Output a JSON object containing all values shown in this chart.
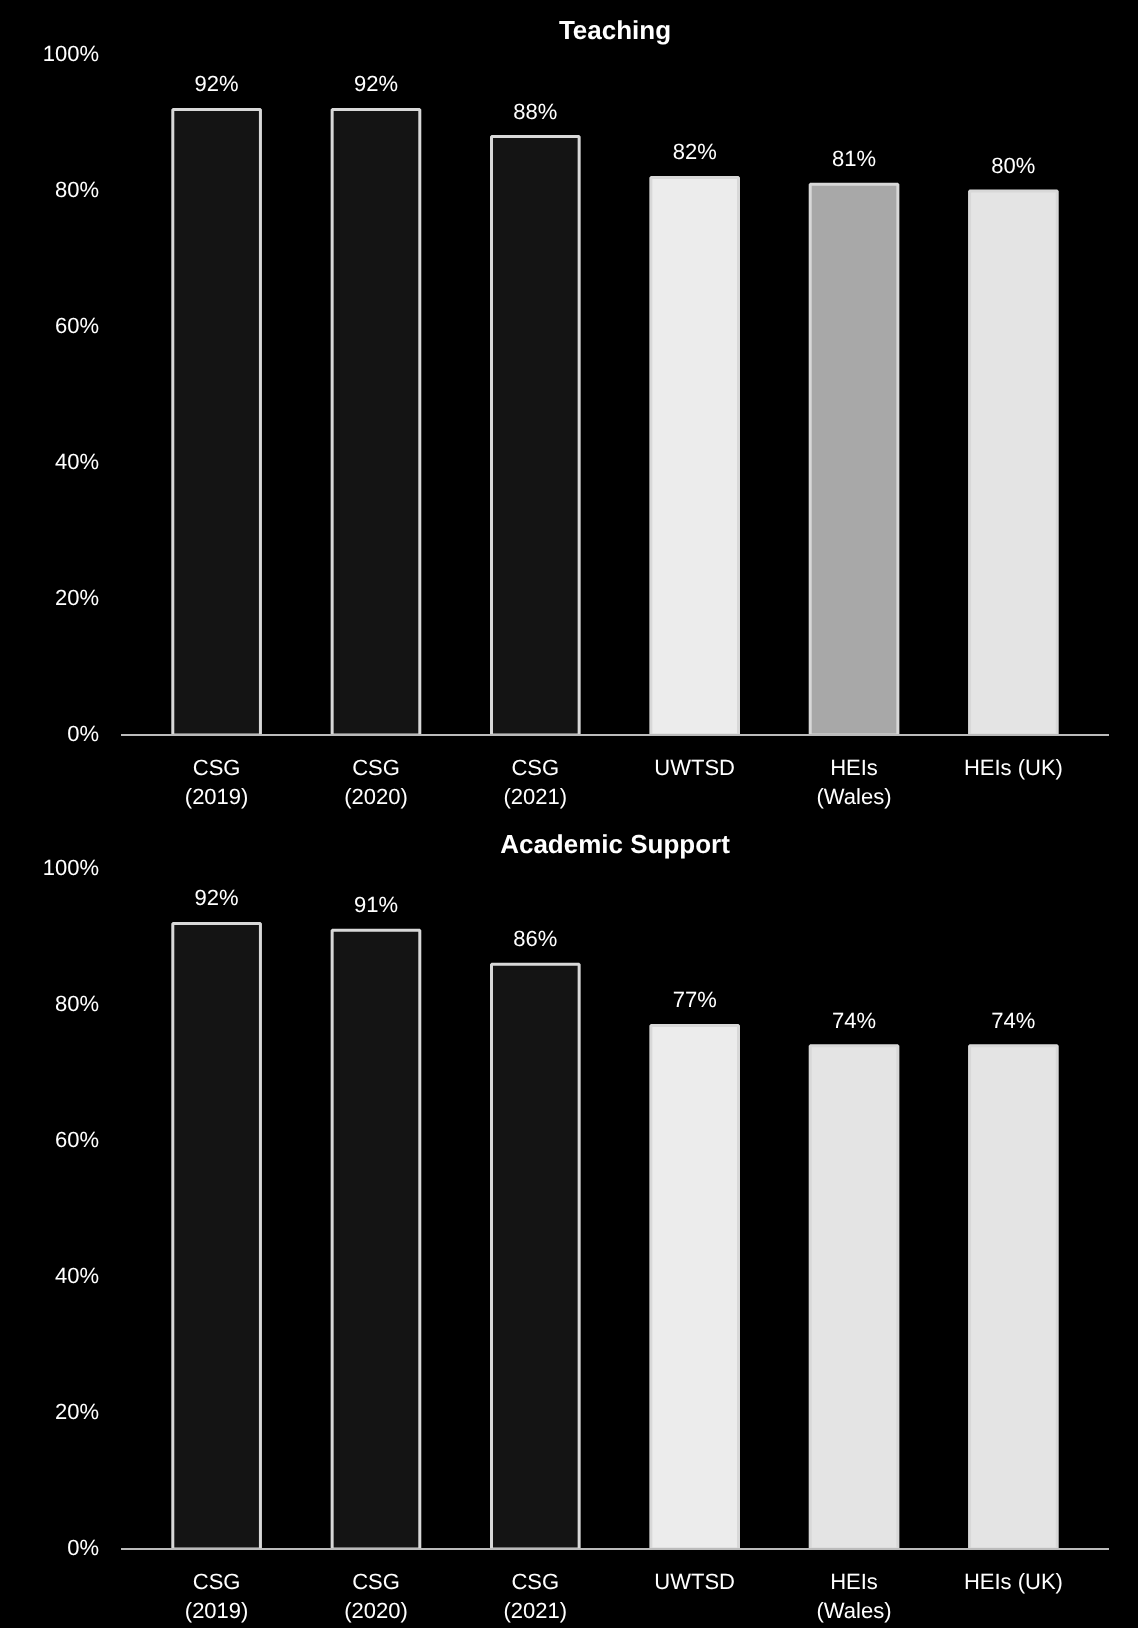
{
  "chart_data": [
    {
      "type": "bar",
      "title": "Teaching",
      "categories": [
        "CSG\n(2019)",
        "CSG\n(2020)",
        "CSG\n(2021)",
        "UWTSD",
        "HEIs\n(Wales)",
        "HEIs (UK)"
      ],
      "values": [
        92,
        92,
        88,
        82,
        81,
        80
      ],
      "value_labels": [
        "92%",
        "92%",
        "88%",
        "82%",
        "81%",
        "80%"
      ],
      "colors": [
        "#141414",
        "#141414",
        "#141414",
        "#ececec",
        "#a8a8a8",
        "#e4e4e4"
      ],
      "ylim": [
        0,
        100
      ],
      "yticks": [
        {
          "value": 0,
          "label": "0%"
        },
        {
          "value": 20,
          "label": "20%"
        },
        {
          "value": 40,
          "label": "40%"
        },
        {
          "value": 60,
          "label": "60%"
        },
        {
          "value": 80,
          "label": "80%"
        },
        {
          "value": 100,
          "label": "100%"
        }
      ],
      "grid": false
    },
    {
      "type": "bar",
      "title": "Academic Support",
      "categories": [
        "CSG\n(2019)",
        "CSG\n(2020)",
        "CSG\n(2021)",
        "UWTSD",
        "HEIs\n(Wales)",
        "HEIs (UK)"
      ],
      "values": [
        92,
        91,
        86,
        77,
        74,
        74
      ],
      "value_labels": [
        "92%",
        "91%",
        "86%",
        "77%",
        "74%",
        "74%"
      ],
      "colors": [
        "#141414",
        "#141414",
        "#141414",
        "#ececec",
        "#e4e4e4",
        "#e4e4e4"
      ],
      "ylim": [
        0,
        100
      ],
      "yticks": [
        {
          "value": 0,
          "label": "0%"
        },
        {
          "value": 20,
          "label": "20%"
        },
        {
          "value": 40,
          "label": "40%"
        },
        {
          "value": 60,
          "label": "60%"
        },
        {
          "value": 80,
          "label": "80%"
        },
        {
          "value": 100,
          "label": "100%"
        }
      ],
      "grid": false
    }
  ]
}
